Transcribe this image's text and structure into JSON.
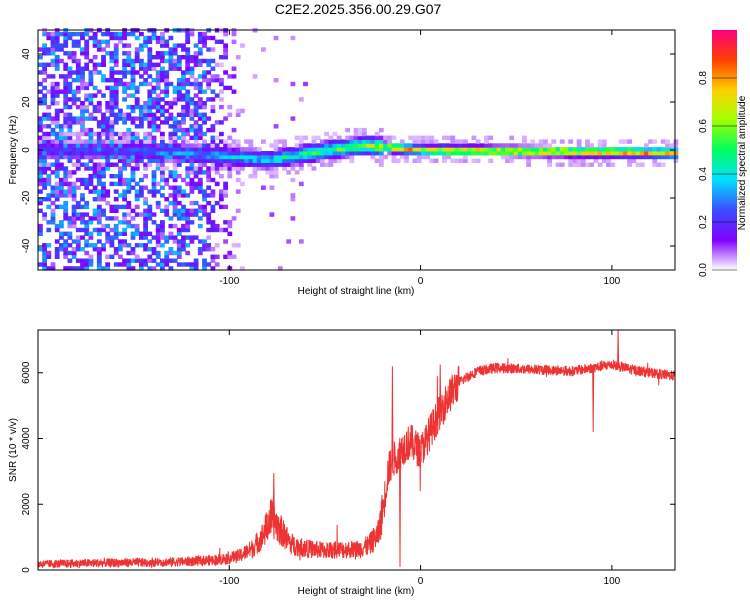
{
  "title": "C2E2.2025.356.00.29.G07",
  "colorbar": {
    "label": "Normalized spectral amplitude",
    "ticks": [
      "0.0",
      "0.2",
      "0.4",
      "0.6",
      "0.8"
    ],
    "tick_values": [
      0,
      0.2,
      0.4,
      0.6,
      0.8
    ],
    "range": [
      0,
      1
    ],
    "colors": [
      "#ffffff",
      "#8000ff",
      "#3a4cff",
      "#00e0ff",
      "#00ff60",
      "#a0ff00",
      "#ffd000",
      "#ff4000",
      "#ff0080"
    ]
  },
  "chart_data": [
    {
      "type": "heatmap",
      "name": "spectrogram",
      "xlabel": "Height of straight line (km)",
      "ylabel": "Frequency (Hz)",
      "xlim": [
        -200,
        133
      ],
      "ylim": [
        -50,
        50
      ],
      "xticks": [
        "-100",
        "0",
        "100"
      ],
      "xtick_values": [
        -100,
        0,
        100
      ],
      "yticks": [
        "-40",
        "-20",
        "0",
        "20",
        "40"
      ],
      "ytick_values": [
        -40,
        -20,
        0,
        20,
        40
      ],
      "band_center_hz": [
        {
          "x": -150,
          "f": 0
        },
        {
          "x": -110,
          "f": -2
        },
        {
          "x": -80,
          "f": -4
        },
        {
          "x": -50,
          "f": 0
        },
        {
          "x": -30,
          "f": 2
        },
        {
          "x": -15,
          "f": 1
        },
        {
          "x": 0,
          "f": 0
        },
        {
          "x": 133,
          "f": -1
        }
      ],
      "band_peak_amplitude": [
        {
          "x": -160,
          "a": 0.25
        },
        {
          "x": -120,
          "a": 0.35
        },
        {
          "x": -70,
          "a": 0.5
        },
        {
          "x": -30,
          "a": 0.65
        },
        {
          "x": -15,
          "a": 0.85
        },
        {
          "x": 0,
          "a": 0.8
        },
        {
          "x": 20,
          "a": 0.95
        },
        {
          "x": 133,
          "a": 0.9
        }
      ],
      "noise_extent_km": [
        -200,
        -90
      ]
    },
    {
      "type": "line",
      "name": "snr",
      "xlabel": "Height of straight line (km)",
      "ylabel": "SNR (10 * v/v)",
      "xlim": [
        -200,
        133
      ],
      "ylim": [
        0,
        7300
      ],
      "xticks": [
        "-100",
        "0",
        "100"
      ],
      "xtick_values": [
        -100,
        0,
        100
      ],
      "yticks": [
        "0",
        "2000",
        "4000",
        "6000"
      ],
      "ytick_values": [
        0,
        2000,
        4000,
        6000
      ],
      "color": "#ee3333",
      "series": [
        {
          "name": "SNR",
          "x": [
            -200,
            -180,
            -160,
            -140,
            -120,
            -105,
            -95,
            -88,
            -83,
            -78,
            -73,
            -68,
            -60,
            -50,
            -40,
            -32,
            -27,
            -22,
            -19,
            -17,
            -15,
            -12,
            -8,
            -5,
            0,
            5,
            10,
            15,
            20,
            25,
            30,
            40,
            60,
            80,
            90,
            100,
            110,
            120,
            133
          ],
          "y": [
            180,
            200,
            220,
            230,
            260,
            320,
            420,
            650,
            1000,
            1600,
            1200,
            800,
            650,
            600,
            620,
            640,
            750,
            1100,
            2100,
            3000,
            3300,
            3500,
            3800,
            3900,
            3600,
            4200,
            4800,
            5300,
            5700,
            5900,
            6050,
            6150,
            6100,
            6050,
            6150,
            6250,
            6100,
            6000,
            5900
          ]
        }
      ],
      "spikes": [
        {
          "x": -77,
          "y": 2950
        },
        {
          "x": -15,
          "y": 6200
        },
        {
          "x": -11,
          "y": 100
        },
        {
          "x": 10,
          "y": 6250
        },
        {
          "x": 90,
          "y": 4200
        },
        {
          "x": 103,
          "y": 7300
        }
      ]
    }
  ]
}
